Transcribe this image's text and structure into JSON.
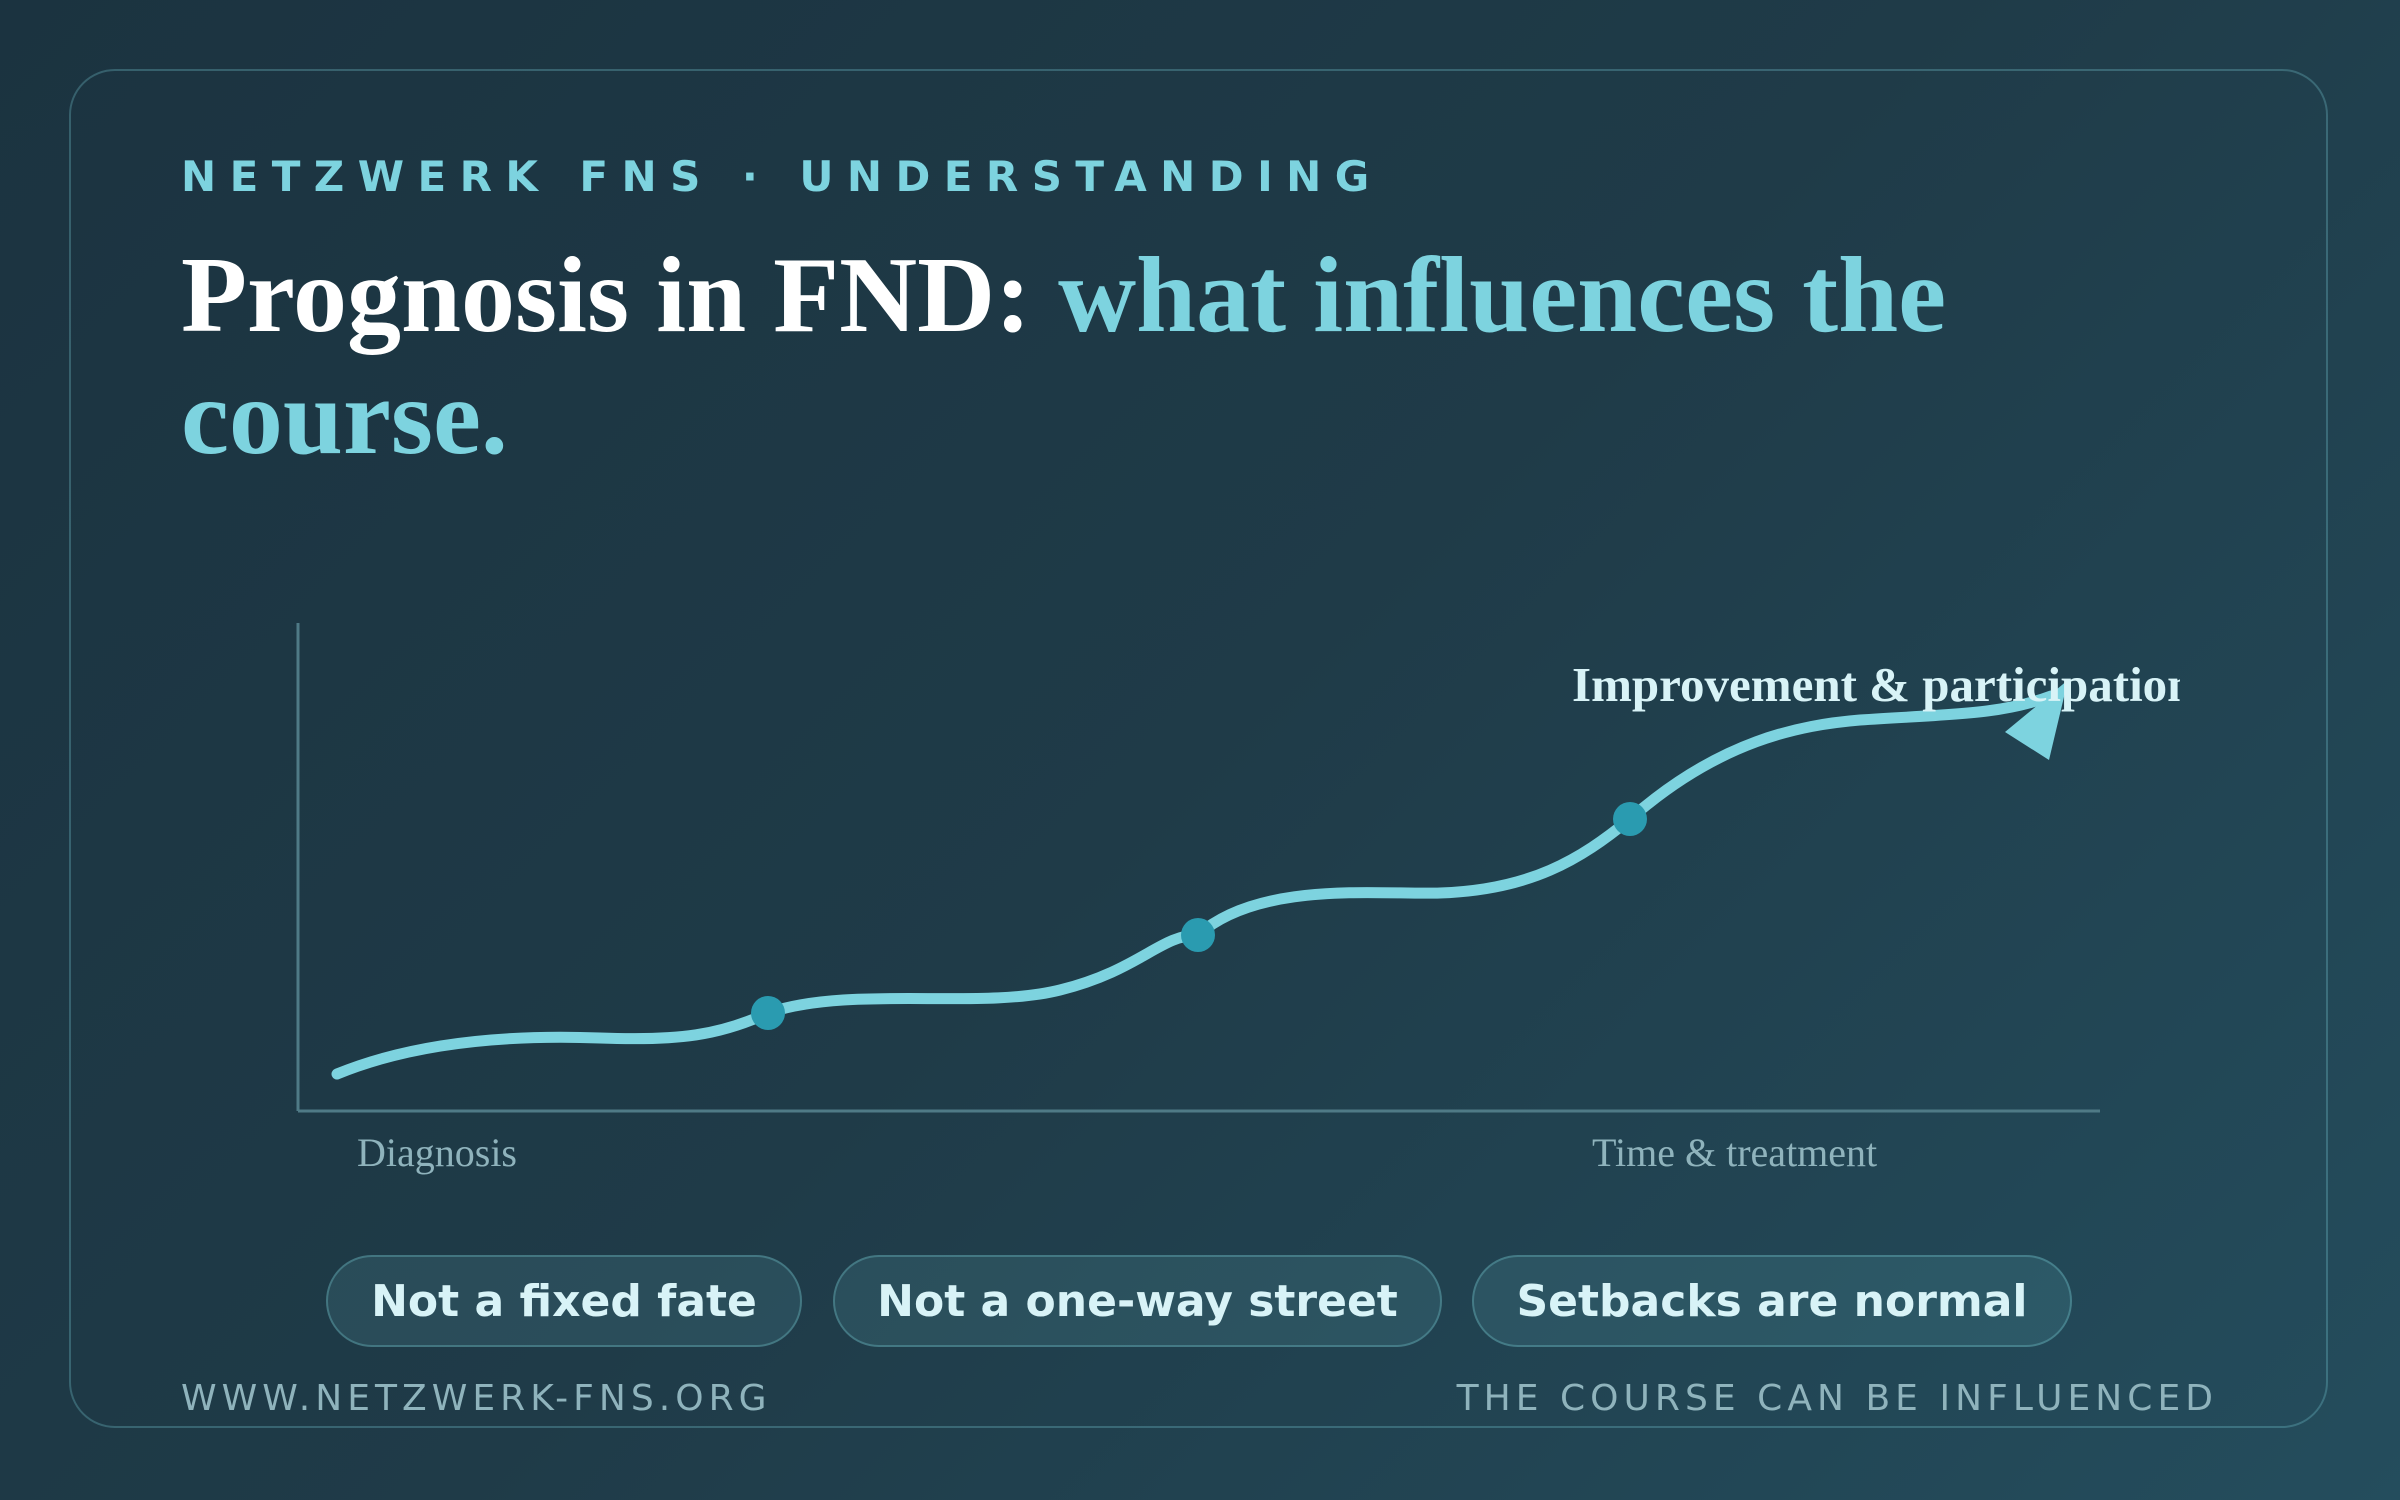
{
  "kicker": "NETZWERK FNS · UNDERSTANDING",
  "title": {
    "lead": "Prognosis in FND:",
    "highlight": "what influences the course."
  },
  "illustration": {
    "annotation": "Improvement & participation",
    "start_label": "Diagnosis",
    "end_label": "Time & treatment"
  },
  "pills": [
    "Not a fixed fate",
    "Not a one-way street",
    "Setbacks are normal"
  ],
  "footer": {
    "left": "WWW.NETZWERK-FNS.ORG",
    "right": "THE COURSE CAN BE INFLUENCED"
  }
}
